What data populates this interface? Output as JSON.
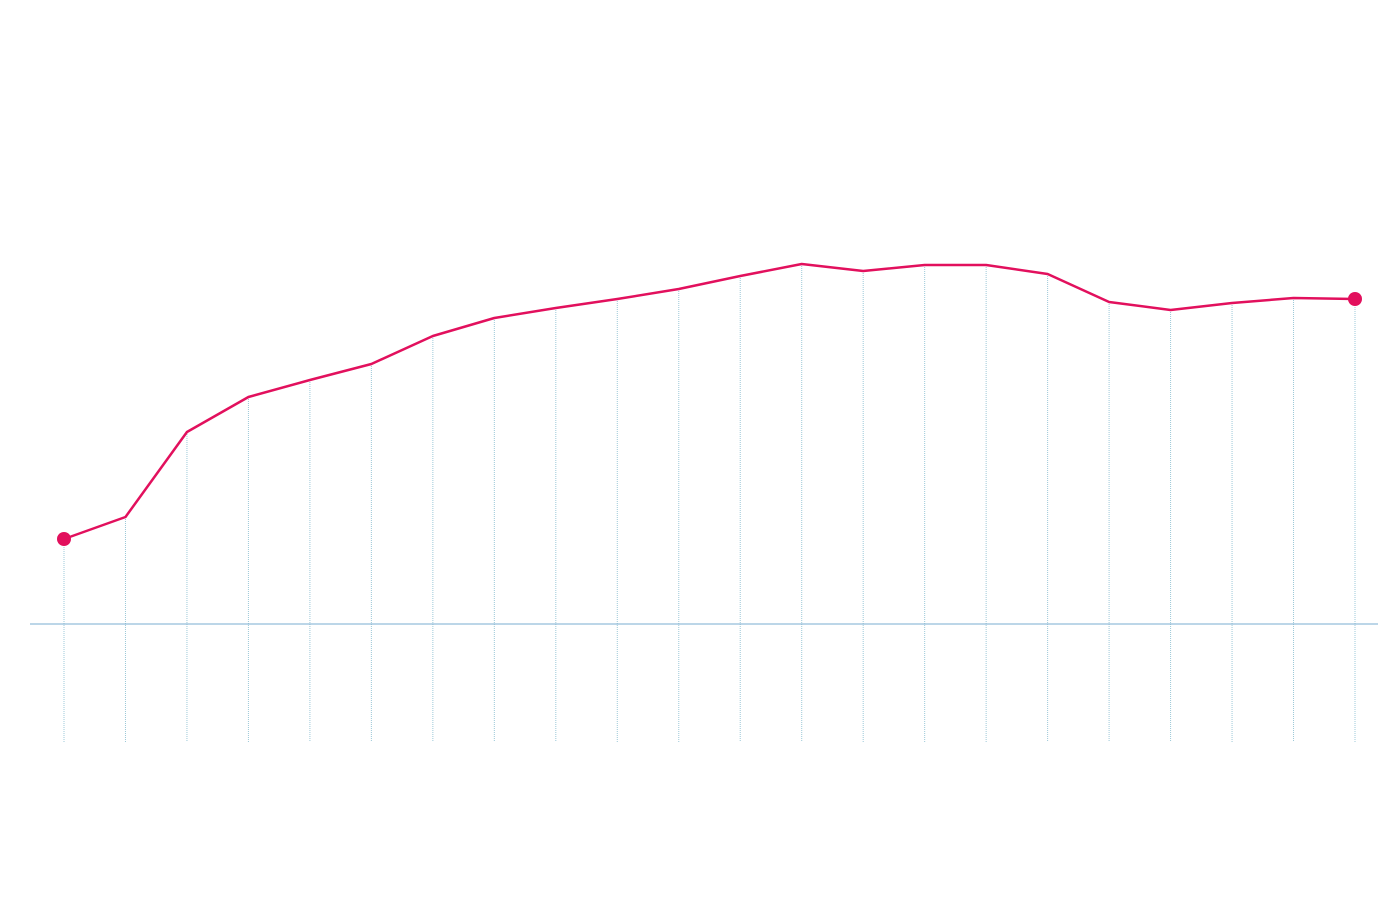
{
  "chart_data": {
    "type": "line",
    "categories": [
      null,
      null,
      null,
      null,
      null,
      null,
      null,
      null,
      null,
      null,
      null,
      null,
      null,
      null,
      null,
      null,
      null,
      null,
      null,
      null,
      null,
      null
    ],
    "values": [
      85,
      107,
      192,
      227,
      244,
      260,
      288,
      306,
      316,
      325,
      335,
      348,
      360,
      353,
      359,
      359,
      350,
      322,
      314,
      321,
      326,
      325
    ],
    "color": "#e2105d",
    "ylim": [
      -118,
      624
    ]
  }
}
